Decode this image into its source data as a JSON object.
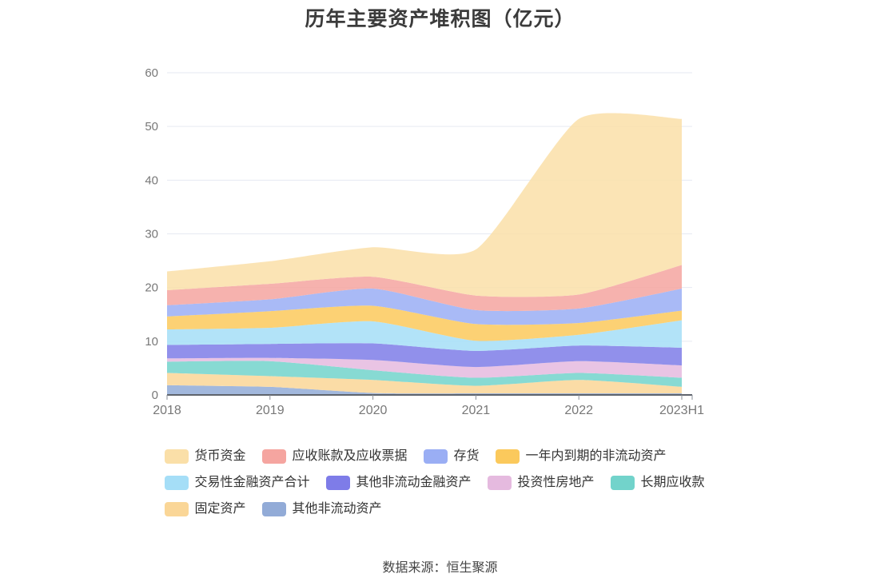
{
  "page": {
    "title": "历年主要资产堆积图（亿元）",
    "footer": "数据来源：恒生聚源"
  },
  "chart_data": {
    "type": "area",
    "stacked": true,
    "title": "历年主要资产堆积图（亿元）",
    "categories": [
      "2018",
      "2019",
      "2020",
      "2021",
      "2022",
      "2023H1"
    ],
    "series": [
      {
        "name": "货币资金",
        "color": "#FADFA8",
        "values": [
          3.5,
          4.2,
          5.5,
          8.6,
          32.7,
          27.2
        ]
      },
      {
        "name": "应收账款及应收票据",
        "color": "#F5A5A0",
        "values": [
          2.8,
          2.9,
          2.2,
          2.7,
          2.6,
          4.4
        ]
      },
      {
        "name": "存货",
        "color": "#9AAEF4",
        "values": [
          2.1,
          2.2,
          3.2,
          2.6,
          2.7,
          4.1
        ]
      },
      {
        "name": "一年内到期的非流动资产",
        "color": "#FBC95C",
        "values": [
          2.4,
          3.1,
          2.9,
          3.1,
          2.2,
          1.8
        ]
      },
      {
        "name": "交易性金融资产合计",
        "color": "#A5DEF7",
        "values": [
          2.9,
          3.0,
          4.1,
          1.9,
          2.0,
          5.1
        ]
      },
      {
        "name": "其他非流动金融资产",
        "color": "#7E7CE8",
        "values": [
          2.5,
          2.6,
          3.1,
          3.0,
          2.9,
          3.3
        ]
      },
      {
        "name": "投资性房地产",
        "color": "#E5BADF",
        "values": [
          0.6,
          0.6,
          1.9,
          2.0,
          2.2,
          2.3
        ]
      },
      {
        "name": "长期应收款",
        "color": "#72D3CB",
        "values": [
          2.1,
          2.8,
          1.8,
          1.5,
          1.3,
          1.7
        ]
      },
      {
        "name": "固定资产",
        "color": "#FAD697",
        "values": [
          2.3,
          2.0,
          2.45,
          1.4,
          2.5,
          1.2
        ]
      },
      {
        "name": "其他非流动资产",
        "color": "#92ABD7",
        "values": [
          1.8,
          1.5,
          0.35,
          0.3,
          0.3,
          0.3
        ]
      }
    ],
    "stack_order": "last_legend_item_at_bottom",
    "xlabel": "",
    "ylabel": "",
    "ylim": [
      0,
      60
    ],
    "y_ticks": [
      0,
      10,
      20,
      30,
      40,
      50,
      60
    ],
    "grid": true,
    "legend_position": "bottom",
    "source_note": "数据来源：恒生聚源"
  }
}
